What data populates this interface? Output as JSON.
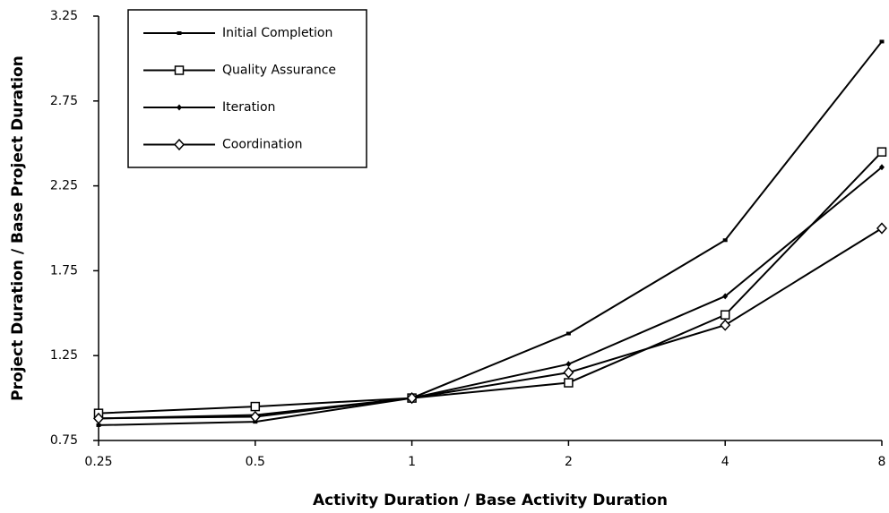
{
  "chart_data": {
    "type": "line",
    "x_label": "Activity Duration / Base Activity Duration",
    "y_label": "Project Duration / Base Project Duration",
    "categories": [
      "0.25",
      "0.5",
      "1",
      "2",
      "4",
      "8"
    ],
    "ylim": [
      0.75,
      3.25
    ],
    "yticks": [
      0.75,
      1.25,
      1.75,
      2.25,
      2.75,
      3.25
    ],
    "grid": false,
    "legend": "upper left",
    "series": [
      {
        "name": "Initial Completion",
        "color": "#000000",
        "marker": "dash",
        "values": [
          0.84,
          0.86,
          1.0,
          1.38,
          1.93,
          3.1
        ]
      },
      {
        "name": "Quality Assurance",
        "color": "#000000",
        "marker": "open-square",
        "values": [
          0.91,
          0.95,
          1.0,
          1.09,
          1.49,
          2.45
        ]
      },
      {
        "name": "Iteration",
        "color": "#000000",
        "marker": "small-diamond",
        "values": [
          0.88,
          0.9,
          1.0,
          1.2,
          1.6,
          2.36
        ]
      },
      {
        "name": "Coordination",
        "color": "#000000",
        "marker": "open-diamond",
        "values": [
          0.88,
          0.89,
          1.0,
          1.15,
          1.43,
          2.0
        ]
      }
    ]
  }
}
